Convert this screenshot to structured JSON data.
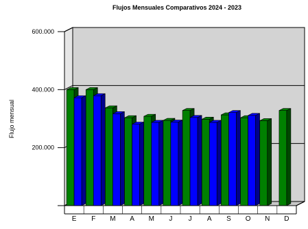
{
  "chart_data": {
    "type": "bar",
    "title": "Flujos Mensuales Comparativos 2024 - 2023",
    "xlabel": "",
    "ylabel": "Flujo mensual",
    "categories": [
      "E",
      "F",
      "M",
      "A",
      "M",
      "J",
      "J",
      "A",
      "S",
      "O",
      "N",
      "D"
    ],
    "series": [
      {
        "name": "",
        "color": "#008000",
        "values": [
          400000,
          400000,
          337000,
          303000,
          308000,
          294000,
          328000,
          298000,
          313000,
          303000,
          293000,
          328000
        ]
      },
      {
        "name": "",
        "color": "#0000ff",
        "values": [
          372000,
          379000,
          317000,
          281000,
          287000,
          288000,
          304000,
          287000,
          321000,
          311000,
          null,
          null
        ]
      }
    ],
    "yticks": [
      {
        "value": 200000,
        "label": "200.000"
      },
      {
        "value": 400000,
        "label": "400.000"
      },
      {
        "value": 600000,
        "label": "600.000"
      }
    ],
    "ylim": [
      0,
      600000
    ],
    "grid": true,
    "three_d": true,
    "colors": {
      "wall": "#d3d3d3",
      "floor": "#c8c8c8",
      "axis": "#000000"
    }
  }
}
